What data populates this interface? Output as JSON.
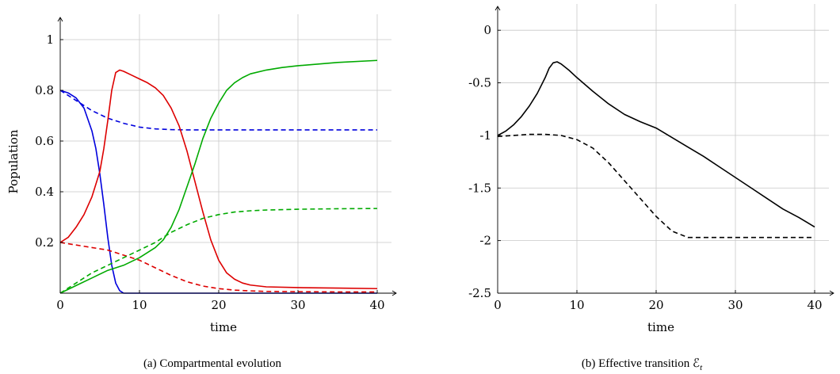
{
  "chart_data": [
    {
      "type": "line",
      "caption": "(a) Compartmental evolution",
      "xlabel": "time",
      "ylabel": "Population",
      "xlim": [
        0,
        43
      ],
      "ylim": [
        0,
        1.1
      ],
      "xticks": [
        0,
        10,
        20,
        30,
        40
      ],
      "yticks": [
        0.2,
        0.4,
        0.6,
        0.8,
        1
      ],
      "xtick_labels": [
        "0",
        "10",
        "20",
        "30",
        "40"
      ],
      "ytick_labels": [
        "0.2",
        "0.4",
        "0.6",
        "0.8",
        "1"
      ],
      "grid": true,
      "series": [
        {
          "color": "#0000dd",
          "style": "solid",
          "x": [
            0,
            1,
            2,
            3,
            4,
            4.5,
            5,
            5.5,
            6,
            6.5,
            7,
            7.5,
            8,
            10,
            20,
            30,
            40
          ],
          "y": [
            0.8,
            0.79,
            0.77,
            0.73,
            0.64,
            0.57,
            0.47,
            0.35,
            0.22,
            0.11,
            0.04,
            0.01,
            0.0,
            0.0,
            0.0,
            0.0,
            0.0
          ]
        },
        {
          "color": "#0000dd",
          "style": "dashed",
          "x": [
            0,
            2,
            4,
            6,
            8,
            10,
            12,
            14,
            16,
            20,
            30,
            40
          ],
          "y": [
            0.8,
            0.76,
            0.72,
            0.69,
            0.67,
            0.655,
            0.648,
            0.645,
            0.644,
            0.644,
            0.644,
            0.644
          ]
        },
        {
          "color": "#dd0000",
          "style": "solid",
          "x": [
            0,
            1,
            2,
            3,
            4,
            5,
            5.5,
            6,
            6.5,
            7,
            7.5,
            8,
            9,
            10,
            11,
            12,
            13,
            14,
            15,
            16,
            17,
            18,
            19,
            20,
            21,
            22,
            23,
            24,
            26,
            30,
            35,
            40
          ],
          "y": [
            0.2,
            0.22,
            0.26,
            0.31,
            0.38,
            0.48,
            0.57,
            0.68,
            0.8,
            0.87,
            0.88,
            0.875,
            0.86,
            0.845,
            0.83,
            0.81,
            0.78,
            0.73,
            0.66,
            0.56,
            0.44,
            0.32,
            0.21,
            0.13,
            0.08,
            0.055,
            0.04,
            0.032,
            0.025,
            0.022,
            0.02,
            0.018
          ]
        },
        {
          "color": "#dd0000",
          "style": "dashed",
          "x": [
            0,
            2,
            4,
            6,
            8,
            10,
            12,
            14,
            16,
            18,
            20,
            22,
            24,
            26,
            30,
            35,
            40
          ],
          "y": [
            0.2,
            0.19,
            0.18,
            0.17,
            0.15,
            0.13,
            0.1,
            0.07,
            0.045,
            0.028,
            0.018,
            0.012,
            0.009,
            0.007,
            0.006,
            0.005,
            0.005
          ]
        },
        {
          "color": "#00aa00",
          "style": "solid",
          "x": [
            0,
            2,
            4,
            6,
            8,
            10,
            12,
            13,
            14,
            15,
            16,
            17,
            18,
            19,
            20,
            21,
            22,
            23,
            24,
            26,
            28,
            30,
            35,
            40
          ],
          "y": [
            0.0,
            0.03,
            0.06,
            0.09,
            0.11,
            0.14,
            0.18,
            0.21,
            0.26,
            0.33,
            0.42,
            0.51,
            0.61,
            0.69,
            0.75,
            0.8,
            0.83,
            0.85,
            0.865,
            0.88,
            0.89,
            0.897,
            0.91,
            0.918
          ]
        },
        {
          "color": "#00aa00",
          "style": "dashed",
          "x": [
            0,
            2,
            4,
            6,
            8,
            10,
            12,
            14,
            16,
            18,
            20,
            22,
            24,
            26,
            30,
            35,
            40
          ],
          "y": [
            0.0,
            0.04,
            0.08,
            0.11,
            0.14,
            0.17,
            0.2,
            0.24,
            0.27,
            0.295,
            0.31,
            0.32,
            0.325,
            0.328,
            0.331,
            0.333,
            0.334
          ]
        }
      ]
    },
    {
      "type": "line",
      "caption": "(b) Effective transition ℰ",
      "caption_sub": "t",
      "xlabel": "time",
      "ylabel": "",
      "xlim": [
        0,
        43
      ],
      "ylim": [
        -2.5,
        0.25
      ],
      "xticks": [
        0,
        10,
        20,
        30,
        40
      ],
      "yticks": [
        -2.5,
        -2,
        -1.5,
        -1,
        -0.5,
        0
      ],
      "xtick_labels": [
        "0",
        "10",
        "20",
        "30",
        "40"
      ],
      "ytick_labels": [
        "-2.5",
        "-2",
        "-1.5",
        "-1",
        "-0.5",
        "0"
      ],
      "grid": true,
      "series": [
        {
          "color": "#000000",
          "style": "solid",
          "x": [
            0,
            1,
            2,
            3,
            4,
            5,
            6,
            6.5,
            7,
            7.5,
            8,
            9,
            10,
            12,
            14,
            16,
            18,
            20,
            22,
            24,
            26,
            28,
            30,
            32,
            34,
            36,
            38,
            40
          ],
          "y": [
            -1.0,
            -0.96,
            -0.9,
            -0.82,
            -0.72,
            -0.6,
            -0.45,
            -0.36,
            -0.31,
            -0.3,
            -0.32,
            -0.38,
            -0.45,
            -0.58,
            -0.7,
            -0.8,
            -0.87,
            -0.93,
            -1.02,
            -1.11,
            -1.2,
            -1.3,
            -1.4,
            -1.5,
            -1.6,
            -1.7,
            -1.78,
            -1.87
          ]
        },
        {
          "color": "#000000",
          "style": "dashed",
          "x": [
            0,
            2,
            4,
            6,
            8,
            10,
            12,
            14,
            16,
            18,
            20,
            22,
            24,
            26,
            30,
            35,
            40
          ],
          "y": [
            -1.01,
            -1.0,
            -0.99,
            -0.99,
            -1.0,
            -1.04,
            -1.12,
            -1.26,
            -1.43,
            -1.6,
            -1.77,
            -1.91,
            -1.97,
            -1.97,
            -1.97,
            -1.97,
            -1.97
          ]
        }
      ]
    }
  ]
}
